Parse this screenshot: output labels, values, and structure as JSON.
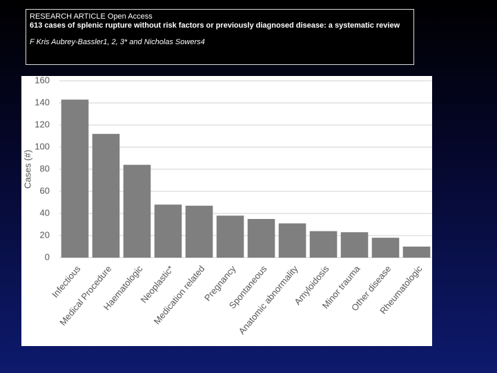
{
  "header": {
    "line1": "RESEARCH ARTICLE Open Access",
    "line2": "613 cases of splenic rupture without risk factors or previously diagnosed disease: a systematic review",
    "line3": "F Kris Aubrey-Bassler1, 2, 3* and Nicholas Sowers4"
  },
  "chart_data": {
    "type": "bar",
    "y_label": "Cases (#)",
    "categories": [
      "Infectious",
      "Medical Procedure",
      "Haematologic",
      "Neoplastic*",
      "Medication related",
      "Pregnancy",
      "Spontaneous",
      "Anatomic abnormality",
      "Amyloidosis",
      "Minor trauma",
      "Other disease",
      "Rheumatologic"
    ],
    "values": [
      143,
      112,
      84,
      48,
      47,
      38,
      35,
      31,
      24,
      23,
      18,
      10
    ],
    "color": "#7f7f7f",
    "ylim": [
      0,
      160
    ],
    "yticks": [
      0,
      20,
      40,
      60,
      80,
      100,
      120,
      140,
      160
    ],
    "grid": true
  }
}
